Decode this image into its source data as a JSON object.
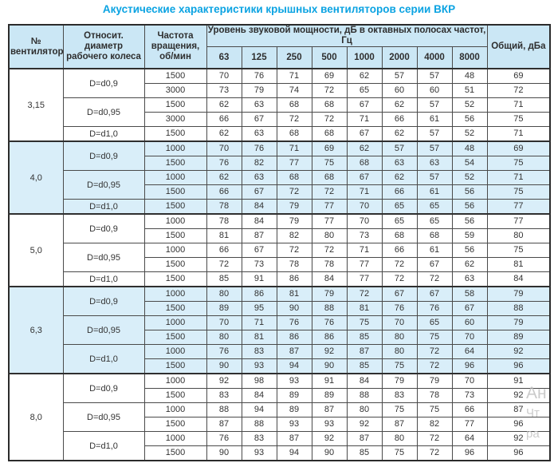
{
  "title": "Акустические характеристики крышных вентиляторов серии ВКР",
  "colors": {
    "title_accent": "#0ba3e2",
    "header_bg": "#cbe7f5",
    "shaded_row_bg": "#d9eef9",
    "border": "#4a4a4a"
  },
  "header": {
    "fan": "№ вентилятора",
    "diameter": "Относит. диаметр рабочего колеса",
    "rpm": "Частота вращения, об/мин",
    "levels_group": "Уровень звуковой мощности, дБ в октавных полосах частот, Гц",
    "frequencies": [
      "63",
      "125",
      "250",
      "500",
      "1000",
      "2000",
      "4000",
      "8000"
    ],
    "total": "Общий, дБа"
  },
  "groups": [
    {
      "fan": "3,15",
      "shaded": false,
      "blocks": [
        {
          "diameter": "D=d0,9",
          "rows": [
            {
              "rpm": "1500",
              "levels": [
                70,
                76,
                71,
                69,
                62,
                57,
                57,
                48
              ],
              "total": 69
            },
            {
              "rpm": "3000",
              "levels": [
                73,
                79,
                74,
                72,
                65,
                60,
                60,
                51
              ],
              "total": 72
            }
          ]
        },
        {
          "diameter": "D=d0,95",
          "rows": [
            {
              "rpm": "1500",
              "levels": [
                62,
                63,
                68,
                68,
                67,
                62,
                57,
                52
              ],
              "total": 71
            },
            {
              "rpm": "3000",
              "levels": [
                66,
                67,
                72,
                72,
                71,
                66,
                61,
                56
              ],
              "total": 75
            }
          ]
        },
        {
          "diameter": "D=d1,0",
          "rows": [
            {
              "rpm": "1500",
              "levels": [
                62,
                63,
                68,
                68,
                67,
                62,
                57,
                52
              ],
              "total": 71
            }
          ]
        }
      ]
    },
    {
      "fan": "4,0",
      "shaded": true,
      "blocks": [
        {
          "diameter": "D=d0,9",
          "rows": [
            {
              "rpm": "1000",
              "levels": [
                70,
                76,
                71,
                69,
                62,
                57,
                57,
                48
              ],
              "total": 69
            },
            {
              "rpm": "1500",
              "levels": [
                76,
                82,
                77,
                75,
                68,
                63,
                63,
                54
              ],
              "total": 75
            }
          ]
        },
        {
          "diameter": "D=d0,95",
          "rows": [
            {
              "rpm": "1000",
              "levels": [
                62,
                63,
                68,
                68,
                67,
                62,
                57,
                52
              ],
              "total": 71
            },
            {
              "rpm": "1500",
              "levels": [
                66,
                67,
                72,
                72,
                71,
                66,
                61,
                56
              ],
              "total": 75
            }
          ]
        },
        {
          "diameter": "D=d1,0",
          "rows": [
            {
              "rpm": "1500",
              "levels": [
                78,
                84,
                79,
                77,
                70,
                65,
                65,
                56
              ],
              "total": 77
            }
          ]
        }
      ]
    },
    {
      "fan": "5,0",
      "shaded": false,
      "blocks": [
        {
          "diameter": "D=d0,9",
          "rows": [
            {
              "rpm": "1000",
              "levels": [
                78,
                84,
                79,
                77,
                70,
                65,
                65,
                56
              ],
              "total": 77
            },
            {
              "rpm": "1500",
              "levels": [
                81,
                87,
                82,
                80,
                73,
                68,
                68,
                59
              ],
              "total": 80
            }
          ]
        },
        {
          "diameter": "D=d0,95",
          "rows": [
            {
              "rpm": "1000",
              "levels": [
                66,
                67,
                72,
                72,
                71,
                66,
                61,
                56
              ],
              "total": 75
            },
            {
              "rpm": "1500",
              "levels": [
                72,
                73,
                78,
                78,
                77,
                72,
                67,
                62
              ],
              "total": 81
            }
          ]
        },
        {
          "diameter": "D=d1,0",
          "rows": [
            {
              "rpm": "1500",
              "levels": [
                85,
                91,
                86,
                84,
                77,
                72,
                72,
                63
              ],
              "total": 84
            }
          ]
        }
      ]
    },
    {
      "fan": "6,3",
      "shaded": true,
      "blocks": [
        {
          "diameter": "D=d0,9",
          "rows": [
            {
              "rpm": "1000",
              "levels": [
                80,
                86,
                81,
                79,
                72,
                67,
                67,
                58
              ],
              "total": 79
            },
            {
              "rpm": "1500",
              "levels": [
                89,
                95,
                90,
                88,
                81,
                76,
                76,
                67
              ],
              "total": 88
            }
          ]
        },
        {
          "diameter": "D=d0,95",
          "rows": [
            {
              "rpm": "1000",
              "levels": [
                70,
                71,
                76,
                76,
                75,
                70,
                65,
                60
              ],
              "total": 79
            },
            {
              "rpm": "1500",
              "levels": [
                80,
                81,
                86,
                86,
                85,
                80,
                75,
                70
              ],
              "total": 89
            }
          ]
        },
        {
          "diameter": "D=d1,0",
          "rows": [
            {
              "rpm": "1000",
              "levels": [
                76,
                83,
                87,
                92,
                87,
                80,
                72,
                64
              ],
              "total": 92
            },
            {
              "rpm": "1500",
              "levels": [
                90,
                93,
                94,
                90,
                85,
                75,
                72,
                96
              ],
              "total": 96
            }
          ]
        }
      ]
    },
    {
      "fan": "8,0",
      "shaded": false,
      "blocks": [
        {
          "diameter": "D=d0,9",
          "rows": [
            {
              "rpm": "1000",
              "levels": [
                92,
                98,
                93,
                91,
                84,
                79,
                79,
                70
              ],
              "total": 91
            },
            {
              "rpm": "1500",
              "levels": [
                83,
                84,
                89,
                89,
                88,
                83,
                78,
                73
              ],
              "total": 92
            }
          ]
        },
        {
          "diameter": "D=d0,95",
          "rows": [
            {
              "rpm": "1000",
              "levels": [
                88,
                94,
                89,
                87,
                80,
                75,
                75,
                66
              ],
              "total": 87
            },
            {
              "rpm": "1500",
              "levels": [
                87,
                88,
                93,
                93,
                92,
                87,
                82,
                77
              ],
              "total": 96
            }
          ]
        },
        {
          "diameter": "D=d1,0",
          "rows": [
            {
              "rpm": "1000",
              "levels": [
                76,
                83,
                87,
                92,
                87,
                80,
                72,
                64
              ],
              "total": 92
            },
            {
              "rpm": "1500",
              "levels": [
                90,
                93,
                94,
                90,
                85,
                75,
                72,
                96
              ],
              "total": 96
            }
          ]
        }
      ]
    }
  ],
  "watermark": {
    "lines": [
      "Ан",
      "Чт",
      "ра"
    ]
  }
}
